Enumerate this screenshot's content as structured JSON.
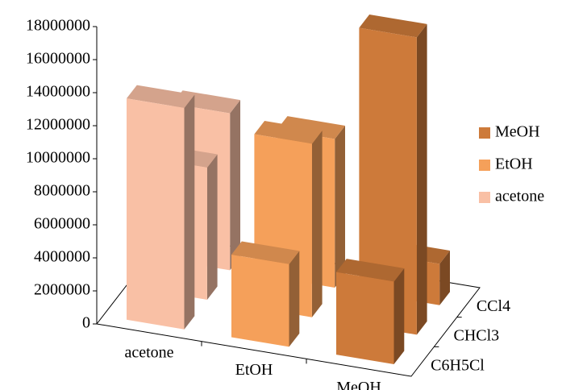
{
  "chart_data": {
    "type": "bar3d",
    "categories": [
      "acetone",
      "EtOH",
      "MeOH"
    ],
    "depth_categories": [
      "C6H5Cl",
      "CHCl3",
      "CCl4"
    ],
    "series": [
      {
        "name": "MeOH",
        "color": "#cd7a3a",
        "values": [
          5000000,
          18000000,
          2500000
        ]
      },
      {
        "name": "EtOH",
        "color": "#f5a05a",
        "values": [
          5000000,
          10500000,
          9000000
        ]
      },
      {
        "name": "acetone",
        "color": "#f9c0a5",
        "values": [
          13400000,
          8000000,
          9500000
        ]
      }
    ],
    "ylim": [
      0,
      18000000
    ],
    "yticks": [
      0,
      2000000,
      4000000,
      6000000,
      8000000,
      10000000,
      12000000,
      14000000,
      16000000,
      18000000
    ],
    "grid": false
  }
}
